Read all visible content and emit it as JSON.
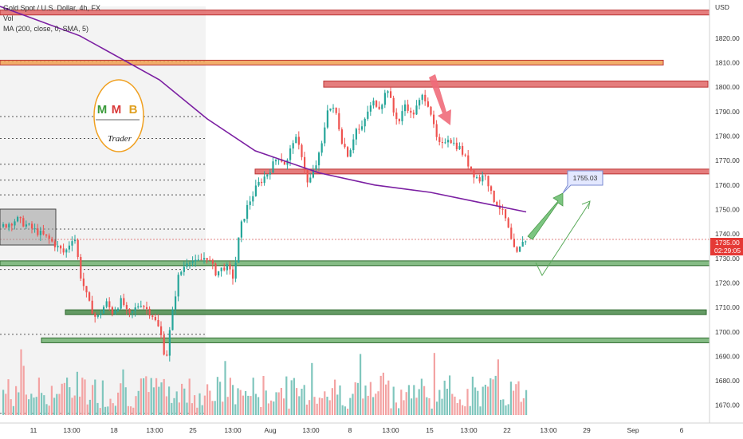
{
  "legend": {
    "symbol_line": "Gold Spot / U.S. Dollar, 4h, FX",
    "volume_label": "Vol",
    "ma_label": "MA (200, close, 0, SMA, 5)"
  },
  "price_badge": {
    "price": "1735.00",
    "countdown": "02:29:05"
  },
  "chart_data": {
    "type": "candlestick",
    "symbol": "Gold Spot / U.S. Dollar",
    "interval": "4h",
    "currency": "USD",
    "yaxis": {
      "label": "USD",
      "ticks": [
        1820,
        1810,
        1800,
        1790,
        1780,
        1770,
        1760,
        1750,
        1740,
        1730,
        1720,
        1710,
        1700,
        1690,
        1680,
        1670
      ],
      "range": [
        1666,
        1833
      ]
    },
    "xaxis": {
      "tick_labels": [
        "11",
        "13:00",
        "18",
        "13:00",
        "25",
        "13:00",
        "Aug",
        "13:00",
        "8",
        "13:00",
        "15",
        "13:00",
        "22",
        "13:00",
        "29",
        "Sep",
        "6"
      ]
    },
    "last_price": 1735.0,
    "target_label": "1755.03",
    "moving_average": {
      "period": 200,
      "points": [
        [
          0,
          1833
        ],
        [
          100,
          1821
        ],
        [
          200,
          1803
        ],
        [
          260,
          1787
        ],
        [
          320,
          1774
        ],
        [
          400,
          1765
        ],
        [
          470,
          1760
        ],
        [
          540,
          1757
        ],
        [
          600,
          1753
        ],
        [
          660,
          1749
        ]
      ]
    },
    "zones": [
      {
        "kind": "resistance",
        "color": "#e06666",
        "y_range": [
          1829.5,
          1831.5
        ]
      },
      {
        "kind": "resistance",
        "color": "#f0a050",
        "y_range": [
          1809.5,
          1811
        ]
      },
      {
        "kind": "resistance",
        "color": "#e06666",
        "y_range": [
          1800,
          1802.5
        ]
      },
      {
        "kind": "resistance",
        "color": "#e06666",
        "y_range": [
          1765.5,
          1766.5
        ]
      },
      {
        "kind": "support",
        "color": "#70b070",
        "y_range": [
          1727.5,
          1729
        ]
      },
      {
        "kind": "support",
        "color": "#4a8a4a",
        "y_range": [
          1707.5,
          1709
        ]
      },
      {
        "kind": "support",
        "color": "#70b070",
        "y_range": [
          1696,
          1697.5
        ]
      }
    ],
    "projection": {
      "points": [
        [
          668,
          1737
        ],
        [
          700,
          1752
        ]
      ],
      "target": 1755.03
    },
    "alt_path": {
      "points": [
        [
          672,
          1729
        ],
        [
          680,
          1722
        ],
        [
          740,
          1751
        ]
      ]
    }
  },
  "logo": {
    "letters": [
      "M",
      "M",
      "B"
    ],
    "caption": "Trader",
    "colors": [
      "#3a9a3a",
      "#d93a3a",
      "#e0a020"
    ]
  }
}
